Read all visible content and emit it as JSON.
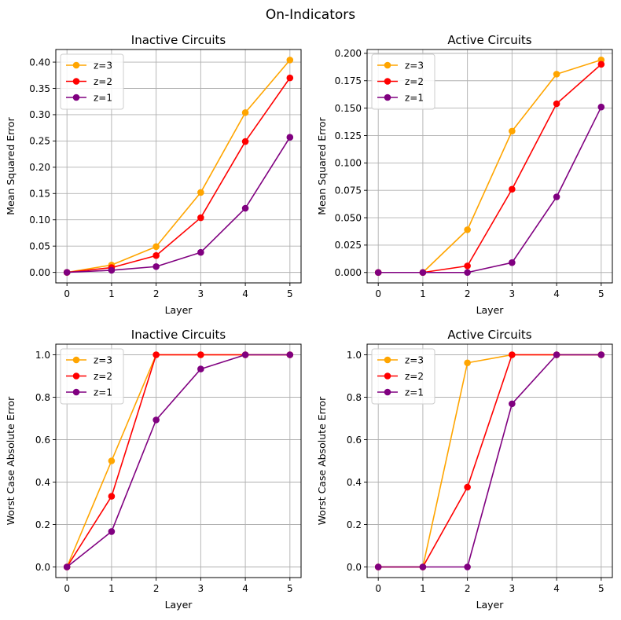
{
  "figure": {
    "suptitle": "On-Indicators"
  },
  "chart_data": [
    {
      "type": "line",
      "title": "Inactive Circuits",
      "xlabel": "Layer",
      "ylabel": "Mean Squared Error",
      "x": [
        0,
        1,
        2,
        3,
        4,
        5
      ],
      "xticks": [
        "0",
        "1",
        "2",
        "3",
        "4",
        "5"
      ],
      "xlim": [
        -0.25,
        5.25
      ],
      "ylim": [
        -0.02,
        0.424
      ],
      "yticks": [
        "0.00",
        "0.05",
        "0.10",
        "0.15",
        "0.20",
        "0.25",
        "0.30",
        "0.35",
        "0.40"
      ],
      "ytick_values": [
        0,
        0.05,
        0.1,
        0.15,
        0.2,
        0.25,
        0.3,
        0.35,
        0.4
      ],
      "grid": true,
      "legend": "upper-left",
      "series": [
        {
          "name": "z=3",
          "color": "#FFA500",
          "values": [
            0.0,
            0.014,
            0.049,
            0.152,
            0.304,
            0.404
          ]
        },
        {
          "name": "z=2",
          "color": "#FF0000",
          "values": [
            0.0,
            0.009,
            0.032,
            0.104,
            0.249,
            0.37
          ]
        },
        {
          "name": "z=1",
          "color": "#800080",
          "values": [
            0.0,
            0.004,
            0.011,
            0.038,
            0.122,
            0.257
          ]
        }
      ]
    },
    {
      "type": "line",
      "title": "Active Circuits",
      "xlabel": "Layer",
      "ylabel": "Mean Squared Error",
      "x": [
        0,
        1,
        2,
        3,
        4,
        5
      ],
      "xticks": [
        "0",
        "1",
        "2",
        "3",
        "4",
        "5"
      ],
      "xlim": [
        -0.25,
        5.25
      ],
      "ylim": [
        -0.0095,
        0.2035
      ],
      "yticks": [
        "0.000",
        "0.025",
        "0.050",
        "0.075",
        "0.100",
        "0.125",
        "0.150",
        "0.175",
        "0.200"
      ],
      "ytick_values": [
        0,
        0.025,
        0.05,
        0.075,
        0.1,
        0.125,
        0.15,
        0.175,
        0.2
      ],
      "grid": true,
      "legend": "upper-left",
      "series": [
        {
          "name": "z=3",
          "color": "#FFA500",
          "values": [
            0.0,
            0.0,
            0.039,
            0.129,
            0.181,
            0.194
          ]
        },
        {
          "name": "z=2",
          "color": "#FF0000",
          "values": [
            0.0,
            0.0,
            0.006,
            0.076,
            0.154,
            0.19
          ]
        },
        {
          "name": "z=1",
          "color": "#800080",
          "values": [
            0.0,
            0.0,
            0.0,
            0.009,
            0.069,
            0.151
          ]
        }
      ]
    },
    {
      "type": "line",
      "title": "Inactive Circuits",
      "xlabel": "Layer",
      "ylabel": "Worst Case Absolute Error",
      "x": [
        0,
        1,
        2,
        3,
        4,
        5
      ],
      "xticks": [
        "0",
        "1",
        "2",
        "3",
        "4",
        "5"
      ],
      "xlim": [
        -0.25,
        5.25
      ],
      "ylim": [
        -0.05,
        1.05
      ],
      "yticks": [
        "0.0",
        "0.2",
        "0.4",
        "0.6",
        "0.8",
        "1.0"
      ],
      "ytick_values": [
        0,
        0.2,
        0.4,
        0.6,
        0.8,
        1.0
      ],
      "grid": true,
      "legend": "upper-left",
      "series": [
        {
          "name": "z=3",
          "color": "#FFA500",
          "values": [
            0.0,
            0.5,
            1.0,
            1.0,
            1.0,
            1.0
          ]
        },
        {
          "name": "z=2",
          "color": "#FF0000",
          "values": [
            0.0,
            0.333,
            1.0,
            1.0,
            1.0,
            1.0
          ]
        },
        {
          "name": "z=1",
          "color": "#800080",
          "values": [
            0.0,
            0.167,
            0.693,
            0.933,
            1.0,
            1.0
          ]
        }
      ]
    },
    {
      "type": "line",
      "title": "Active Circuits",
      "xlabel": "Layer",
      "ylabel": "Worst Case Absolute Error",
      "x": [
        0,
        1,
        2,
        3,
        4,
        5
      ],
      "xticks": [
        "0",
        "1",
        "2",
        "3",
        "4",
        "5"
      ],
      "xlim": [
        -0.25,
        5.25
      ],
      "ylim": [
        -0.05,
        1.05
      ],
      "yticks": [
        "0.0",
        "0.2",
        "0.4",
        "0.6",
        "0.8",
        "1.0"
      ],
      "ytick_values": [
        0,
        0.2,
        0.4,
        0.6,
        0.8,
        1.0
      ],
      "grid": true,
      "legend": "upper-left",
      "series": [
        {
          "name": "z=3",
          "color": "#FFA500",
          "values": [
            0.0,
            0.0,
            0.962,
            1.0,
            1.0,
            1.0
          ]
        },
        {
          "name": "z=2",
          "color": "#FF0000",
          "values": [
            0.0,
            0.0,
            0.376,
            1.0,
            1.0,
            1.0
          ]
        },
        {
          "name": "z=1",
          "color": "#800080",
          "values": [
            0.0,
            0.0,
            0.0,
            0.769,
            1.0,
            1.0
          ]
        }
      ]
    }
  ]
}
